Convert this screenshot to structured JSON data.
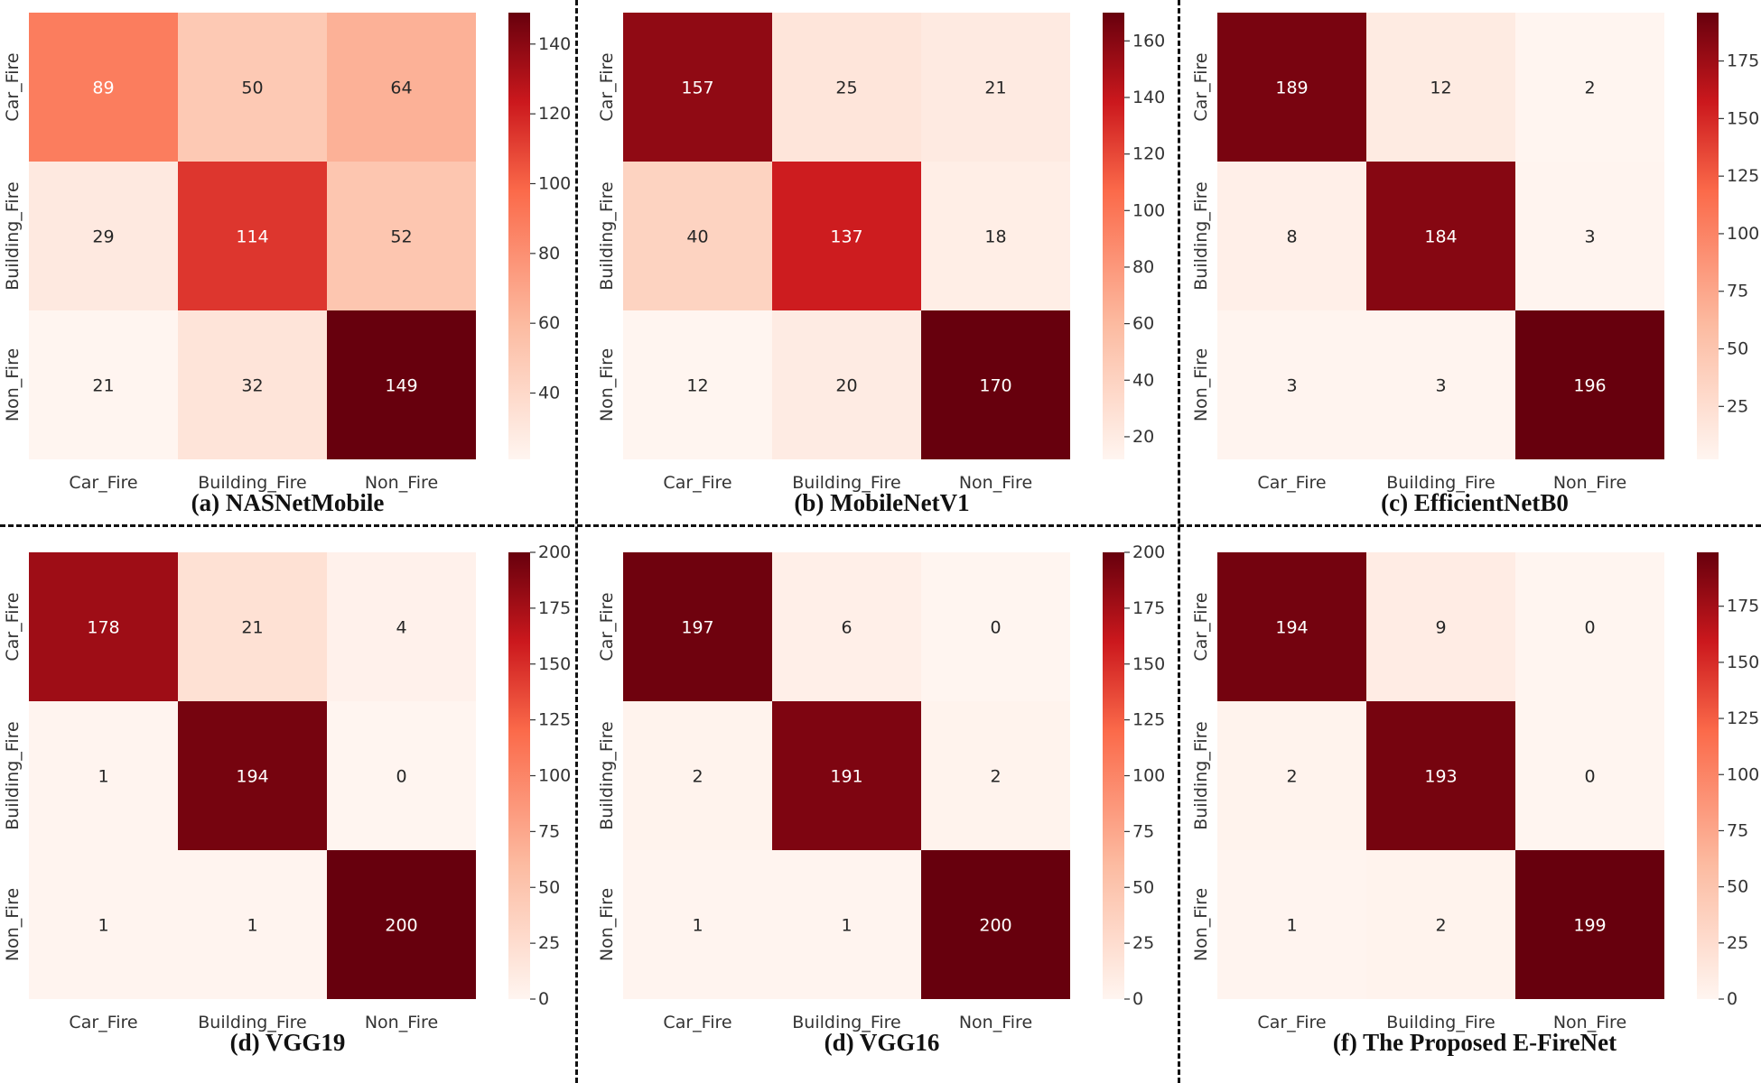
{
  "colormap": {
    "low": "#fff5f0",
    "mid1": "#fcbba1",
    "mid2": "#fb6a4a",
    "mid3": "#cb181d",
    "high": "#67000d"
  },
  "chart_data": [
    {
      "type": "heatmap",
      "title": "(a) NASNetMobile",
      "row_labels": [
        "Car_Fire",
        "Building_Fire",
        "Non_Fire"
      ],
      "col_labels": [
        "Car_Fire",
        "Building_Fire",
        "Non_Fire"
      ],
      "values": [
        [
          89,
          50,
          64
        ],
        [
          29,
          114,
          52
        ],
        [
          21,
          32,
          149
        ]
      ],
      "vmin": 21,
      "vmax": 149,
      "colorbar_ticks": [
        40,
        60,
        80,
        100,
        120,
        140
      ]
    },
    {
      "type": "heatmap",
      "title": "(b) MobileNetV1",
      "row_labels": [
        "Car_Fire",
        "Building_Fire",
        "Non_Fire"
      ],
      "col_labels": [
        "Car_Fire",
        "Building_Fire",
        "Non_Fire"
      ],
      "values": [
        [
          157,
          25,
          21
        ],
        [
          40,
          137,
          18
        ],
        [
          12,
          20,
          170
        ]
      ],
      "vmin": 12,
      "vmax": 170,
      "colorbar_ticks": [
        20,
        40,
        60,
        80,
        100,
        120,
        140,
        160
      ]
    },
    {
      "type": "heatmap",
      "title": "(c) EfficientNetB0",
      "row_labels": [
        "Car_Fire",
        "Building_Fire",
        "Non_Fire"
      ],
      "col_labels": [
        "Car_Fire",
        "Building_Fire",
        "Non_Fire"
      ],
      "values": [
        [
          189,
          12,
          2
        ],
        [
          8,
          184,
          3
        ],
        [
          3,
          3,
          196
        ]
      ],
      "vmin": 2,
      "vmax": 196,
      "colorbar_ticks": [
        25,
        50,
        75,
        100,
        125,
        150,
        175
      ]
    },
    {
      "type": "heatmap",
      "title": "(d) VGG19",
      "row_labels": [
        "Car_Fire",
        "Building_Fire",
        "Non_Fire"
      ],
      "col_labels": [
        "Car_Fire",
        "Building_Fire",
        "Non_Fire"
      ],
      "values": [
        [
          178,
          21,
          4
        ],
        [
          1,
          194,
          0
        ],
        [
          1,
          1,
          200
        ]
      ],
      "vmin": 0,
      "vmax": 200,
      "colorbar_ticks": [
        0,
        25,
        50,
        75,
        100,
        125,
        150,
        175,
        200
      ]
    },
    {
      "type": "heatmap",
      "title": "(d) VGG16",
      "row_labels": [
        "Car_Fire",
        "Building_Fire",
        "Non_Fire"
      ],
      "col_labels": [
        "Car_Fire",
        "Building_Fire",
        "Non_Fire"
      ],
      "values": [
        [
          197,
          6,
          0
        ],
        [
          2,
          191,
          2
        ],
        [
          1,
          1,
          200
        ]
      ],
      "vmin": 0,
      "vmax": 200,
      "colorbar_ticks": [
        0,
        25,
        50,
        75,
        100,
        125,
        150,
        175,
        200
      ]
    },
    {
      "type": "heatmap",
      "title": "(f) The Proposed E-FireNet",
      "row_labels": [
        "Car_Fire",
        "Building_Fire",
        "Non_Fire"
      ],
      "col_labels": [
        "Car_Fire",
        "Building_Fire",
        "Non_Fire"
      ],
      "values": [
        [
          194,
          9,
          0
        ],
        [
          2,
          193,
          0
        ],
        [
          1,
          2,
          199
        ]
      ],
      "vmin": 0,
      "vmax": 199,
      "colorbar_ticks": [
        0,
        25,
        50,
        75,
        100,
        125,
        150,
        175
      ]
    }
  ]
}
